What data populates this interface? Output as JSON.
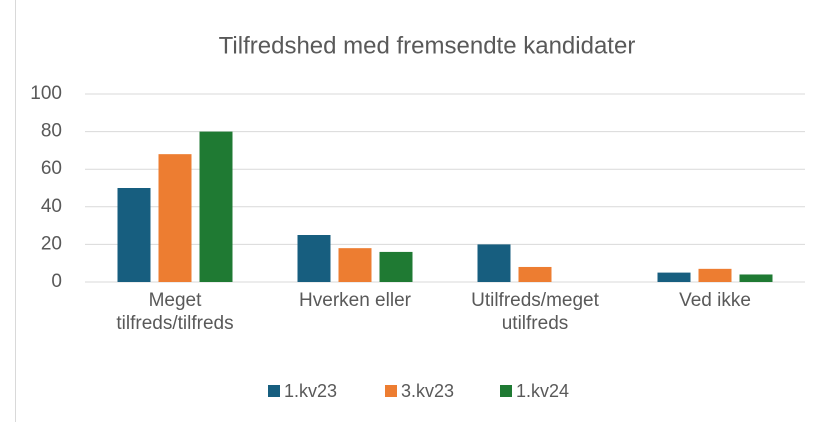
{
  "chart_data": {
    "type": "bar",
    "title": "Tilfredshed med fremsendte kandidater",
    "categories": [
      "Meget tilfreds/tilfreds",
      "Hverken eller",
      "Utilfreds/meget utilfreds",
      "Ved ikke"
    ],
    "series": [
      {
        "name": "1.kv23",
        "color": "#175e7f",
        "values": [
          50,
          25,
          20,
          5
        ]
      },
      {
        "name": "3.kv23",
        "color": "#ed7d31",
        "values": [
          68,
          18,
          8,
          7
        ]
      },
      {
        "name": "1.kv24",
        "color": "#1f7a33",
        "values": [
          80,
          16,
          0,
          4
        ]
      }
    ],
    "ylim": [
      0,
      100
    ],
    "yticks": [
      0,
      20,
      40,
      60,
      80,
      100
    ],
    "grid": true,
    "legend": "bottom"
  }
}
